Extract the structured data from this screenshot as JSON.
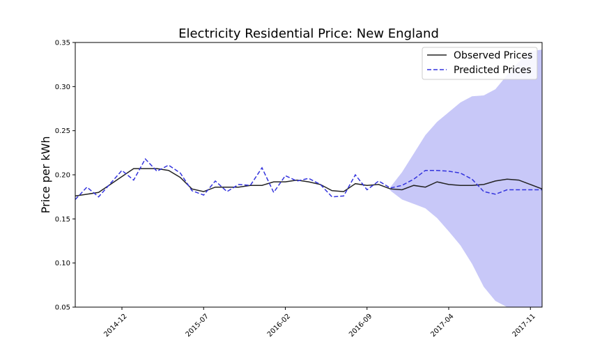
{
  "chart_data": {
    "type": "line",
    "title": "Electricity Residential Price: New England",
    "xlabel": "",
    "ylabel": "Price per kWh",
    "ylim": [
      0.05,
      0.35
    ],
    "xlim": [
      "2014-08",
      "2017-12"
    ],
    "yticks": [
      "0.05",
      "0.10",
      "0.15",
      "0.20",
      "0.25",
      "0.30",
      "0.35"
    ],
    "xticks": [
      "2014-12",
      "2015-07",
      "2016-02",
      "2016-09",
      "2017-04",
      "2017-11"
    ],
    "grid": false,
    "legend_position": "top-right",
    "x": [
      "2014-08",
      "2014-09",
      "2014-10",
      "2014-11",
      "2014-12",
      "2015-01",
      "2015-02",
      "2015-03",
      "2015-04",
      "2015-05",
      "2015-06",
      "2015-07",
      "2015-08",
      "2015-09",
      "2015-10",
      "2015-11",
      "2015-12",
      "2016-01",
      "2016-02",
      "2016-03",
      "2016-04",
      "2016-05",
      "2016-06",
      "2016-07",
      "2016-08",
      "2016-09",
      "2016-10",
      "2016-11",
      "2016-12",
      "2017-01",
      "2017-02",
      "2017-03",
      "2017-04",
      "2017-05",
      "2017-06",
      "2017-07",
      "2017-08",
      "2017-09",
      "2017-10",
      "2017-11",
      "2017-12"
    ],
    "series": [
      {
        "name": "Observed Prices",
        "color": "#222222",
        "style": "solid",
        "values": [
          0.176,
          0.178,
          0.18,
          0.189,
          0.198,
          0.207,
          0.207,
          0.207,
          0.205,
          0.197,
          0.184,
          0.181,
          0.186,
          0.186,
          0.186,
          0.188,
          0.188,
          0.192,
          0.192,
          0.194,
          0.192,
          0.189,
          0.182,
          0.181,
          0.19,
          0.188,
          0.189,
          0.184,
          0.183,
          0.188,
          0.186,
          0.192,
          0.189,
          0.188,
          0.188,
          0.189,
          0.193,
          0.195,
          0.194,
          0.189,
          0.184
        ]
      },
      {
        "name": "Predicted Prices",
        "color": "#3333dd",
        "style": "dashed",
        "values": [
          0.172,
          0.186,
          0.175,
          0.19,
          0.205,
          0.194,
          0.218,
          0.204,
          0.211,
          0.202,
          0.182,
          0.177,
          0.193,
          0.181,
          0.189,
          0.188,
          0.208,
          0.18,
          0.199,
          0.193,
          0.196,
          0.189,
          0.175,
          0.176,
          0.2,
          0.183,
          0.193,
          0.185,
          0.188,
          0.195,
          0.205,
          0.205,
          0.204,
          0.202,
          0.195,
          0.181,
          0.178,
          0.183,
          0.183,
          0.183,
          0.183
        ]
      }
    ],
    "confidence_band": {
      "color": "#aaaaf5",
      "x": [
        "2016-11",
        "2016-12",
        "2017-01",
        "2017-02",
        "2017-03",
        "2017-04",
        "2017-05",
        "2017-06",
        "2017-07",
        "2017-08",
        "2017-09",
        "2017-10",
        "2017-11",
        "2017-12"
      ],
      "upper": [
        0.186,
        0.203,
        0.224,
        0.245,
        0.26,
        0.271,
        0.282,
        0.289,
        0.29,
        0.297,
        0.313,
        0.328,
        0.34,
        0.342
      ],
      "lower": [
        0.182,
        0.172,
        0.167,
        0.162,
        0.151,
        0.136,
        0.12,
        0.099,
        0.073,
        0.057,
        0.05,
        0.05,
        0.05,
        0.05
      ]
    }
  }
}
